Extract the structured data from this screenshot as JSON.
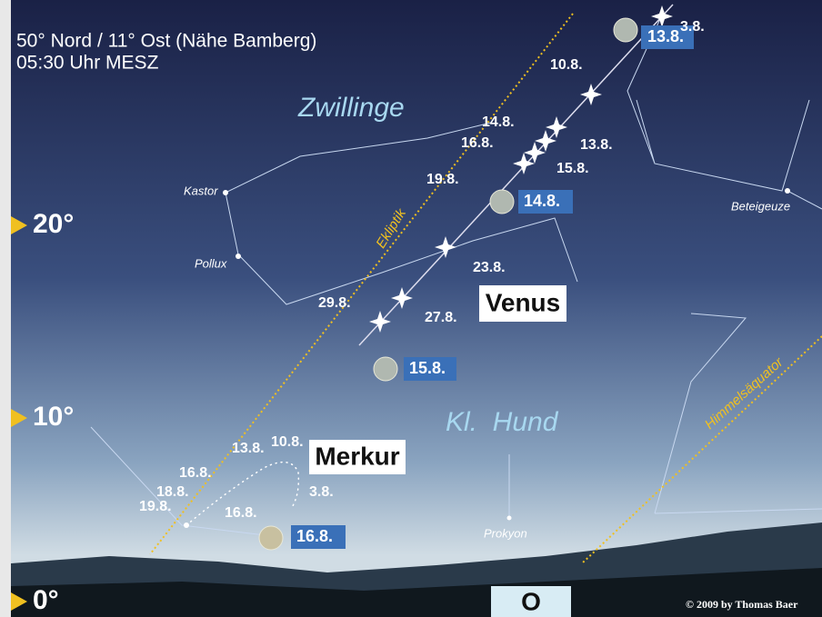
{
  "header": {
    "location": "50° Nord / 11° Ost (Nähe Bamberg)",
    "time": "05:30 Uhr MESZ"
  },
  "altitudes": [
    "20°",
    "10°",
    "0°"
  ],
  "constellations": [
    "Zwillinge",
    "Kl.  Hund"
  ],
  "stars": [
    "Kastor",
    "Pollux",
    "Beteigeuze",
    "Prokyon"
  ],
  "lines": [
    "Ekliptik",
    "Himmelsäquator"
  ],
  "venus": {
    "name": "Venus",
    "dates": [
      "3.8.",
      "10.8.",
      "14.8.",
      "13.8.",
      "16.8.",
      "15.8.",
      "19.8.",
      "23.8.",
      "29.8.",
      "27.8."
    ]
  },
  "merkur": {
    "name": "Merkur",
    "dates": [
      "10.8.",
      "13.8.",
      "16.8.",
      "18.8.",
      "19.8.",
      "16.8.",
      "3.8."
    ]
  },
  "moon": [
    "13.8.",
    "14.8.",
    "15.8.",
    "16.8."
  ],
  "direction": "O",
  "copyright": "© 2009 by Thomas Baer"
}
